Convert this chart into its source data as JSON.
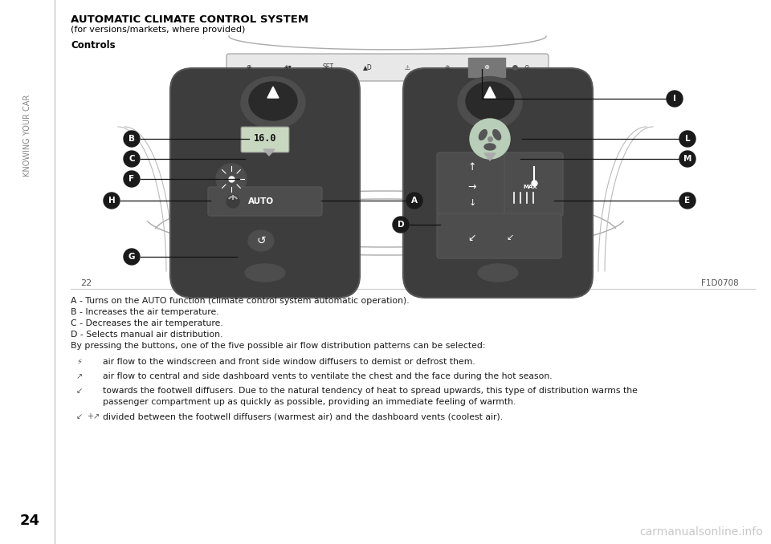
{
  "title": "AUTOMATIC CLIMATE CONTROL SYSTEM",
  "subtitle": "(for versions/markets, where provided)",
  "section": "Controls",
  "page_num": "24",
  "fig_num": "22",
  "fig_code": "F1D0708",
  "side_text": "KNOWING YOUR CAR",
  "body_lines": [
    "A - Turns on the AUTO function (climate control system automatic operation).",
    "B - Increases the air temperature.",
    "C - Decreases the air temperature.",
    "D - Selects manual air distribution.",
    "By pressing the buttons, one of the five possible air flow distribution patterns can be selected:"
  ],
  "bullet_lines": [
    "air flow to the windscreen and front side window diffusers to demist or defrost them.",
    "air flow to central and side dashboard vents to ventilate the chest and the face during the hot season.",
    "towards the footwell diffusers. Due to the natural tendency of heat to spread upwards, this type of distribution warms the",
    "passenger compartment up as quickly as possible, providing an immediate feeling of warmth.",
    "divided between the footwell diffusers (warmest air) and the dashboard vents (coolest air)."
  ],
  "bg_color": "#ffffff",
  "dark_knob": "#3d3d3d",
  "darker_knob": "#2a2a2a",
  "mid_knob": "#4d4d4d",
  "light_knob": "#666666",
  "screen_color": "#c8d8c0",
  "fan_color": "#b8ceb8",
  "strip_bg": "#e8e8e8",
  "strip_highlight": "#888888",
  "label_bg": "#1a1a1a",
  "label_fg": "#ffffff",
  "line_color": "#111111",
  "text_color": "#1a1a1a",
  "sidebar_text_color": "#888888",
  "watermark_color": "#c8c8c8"
}
